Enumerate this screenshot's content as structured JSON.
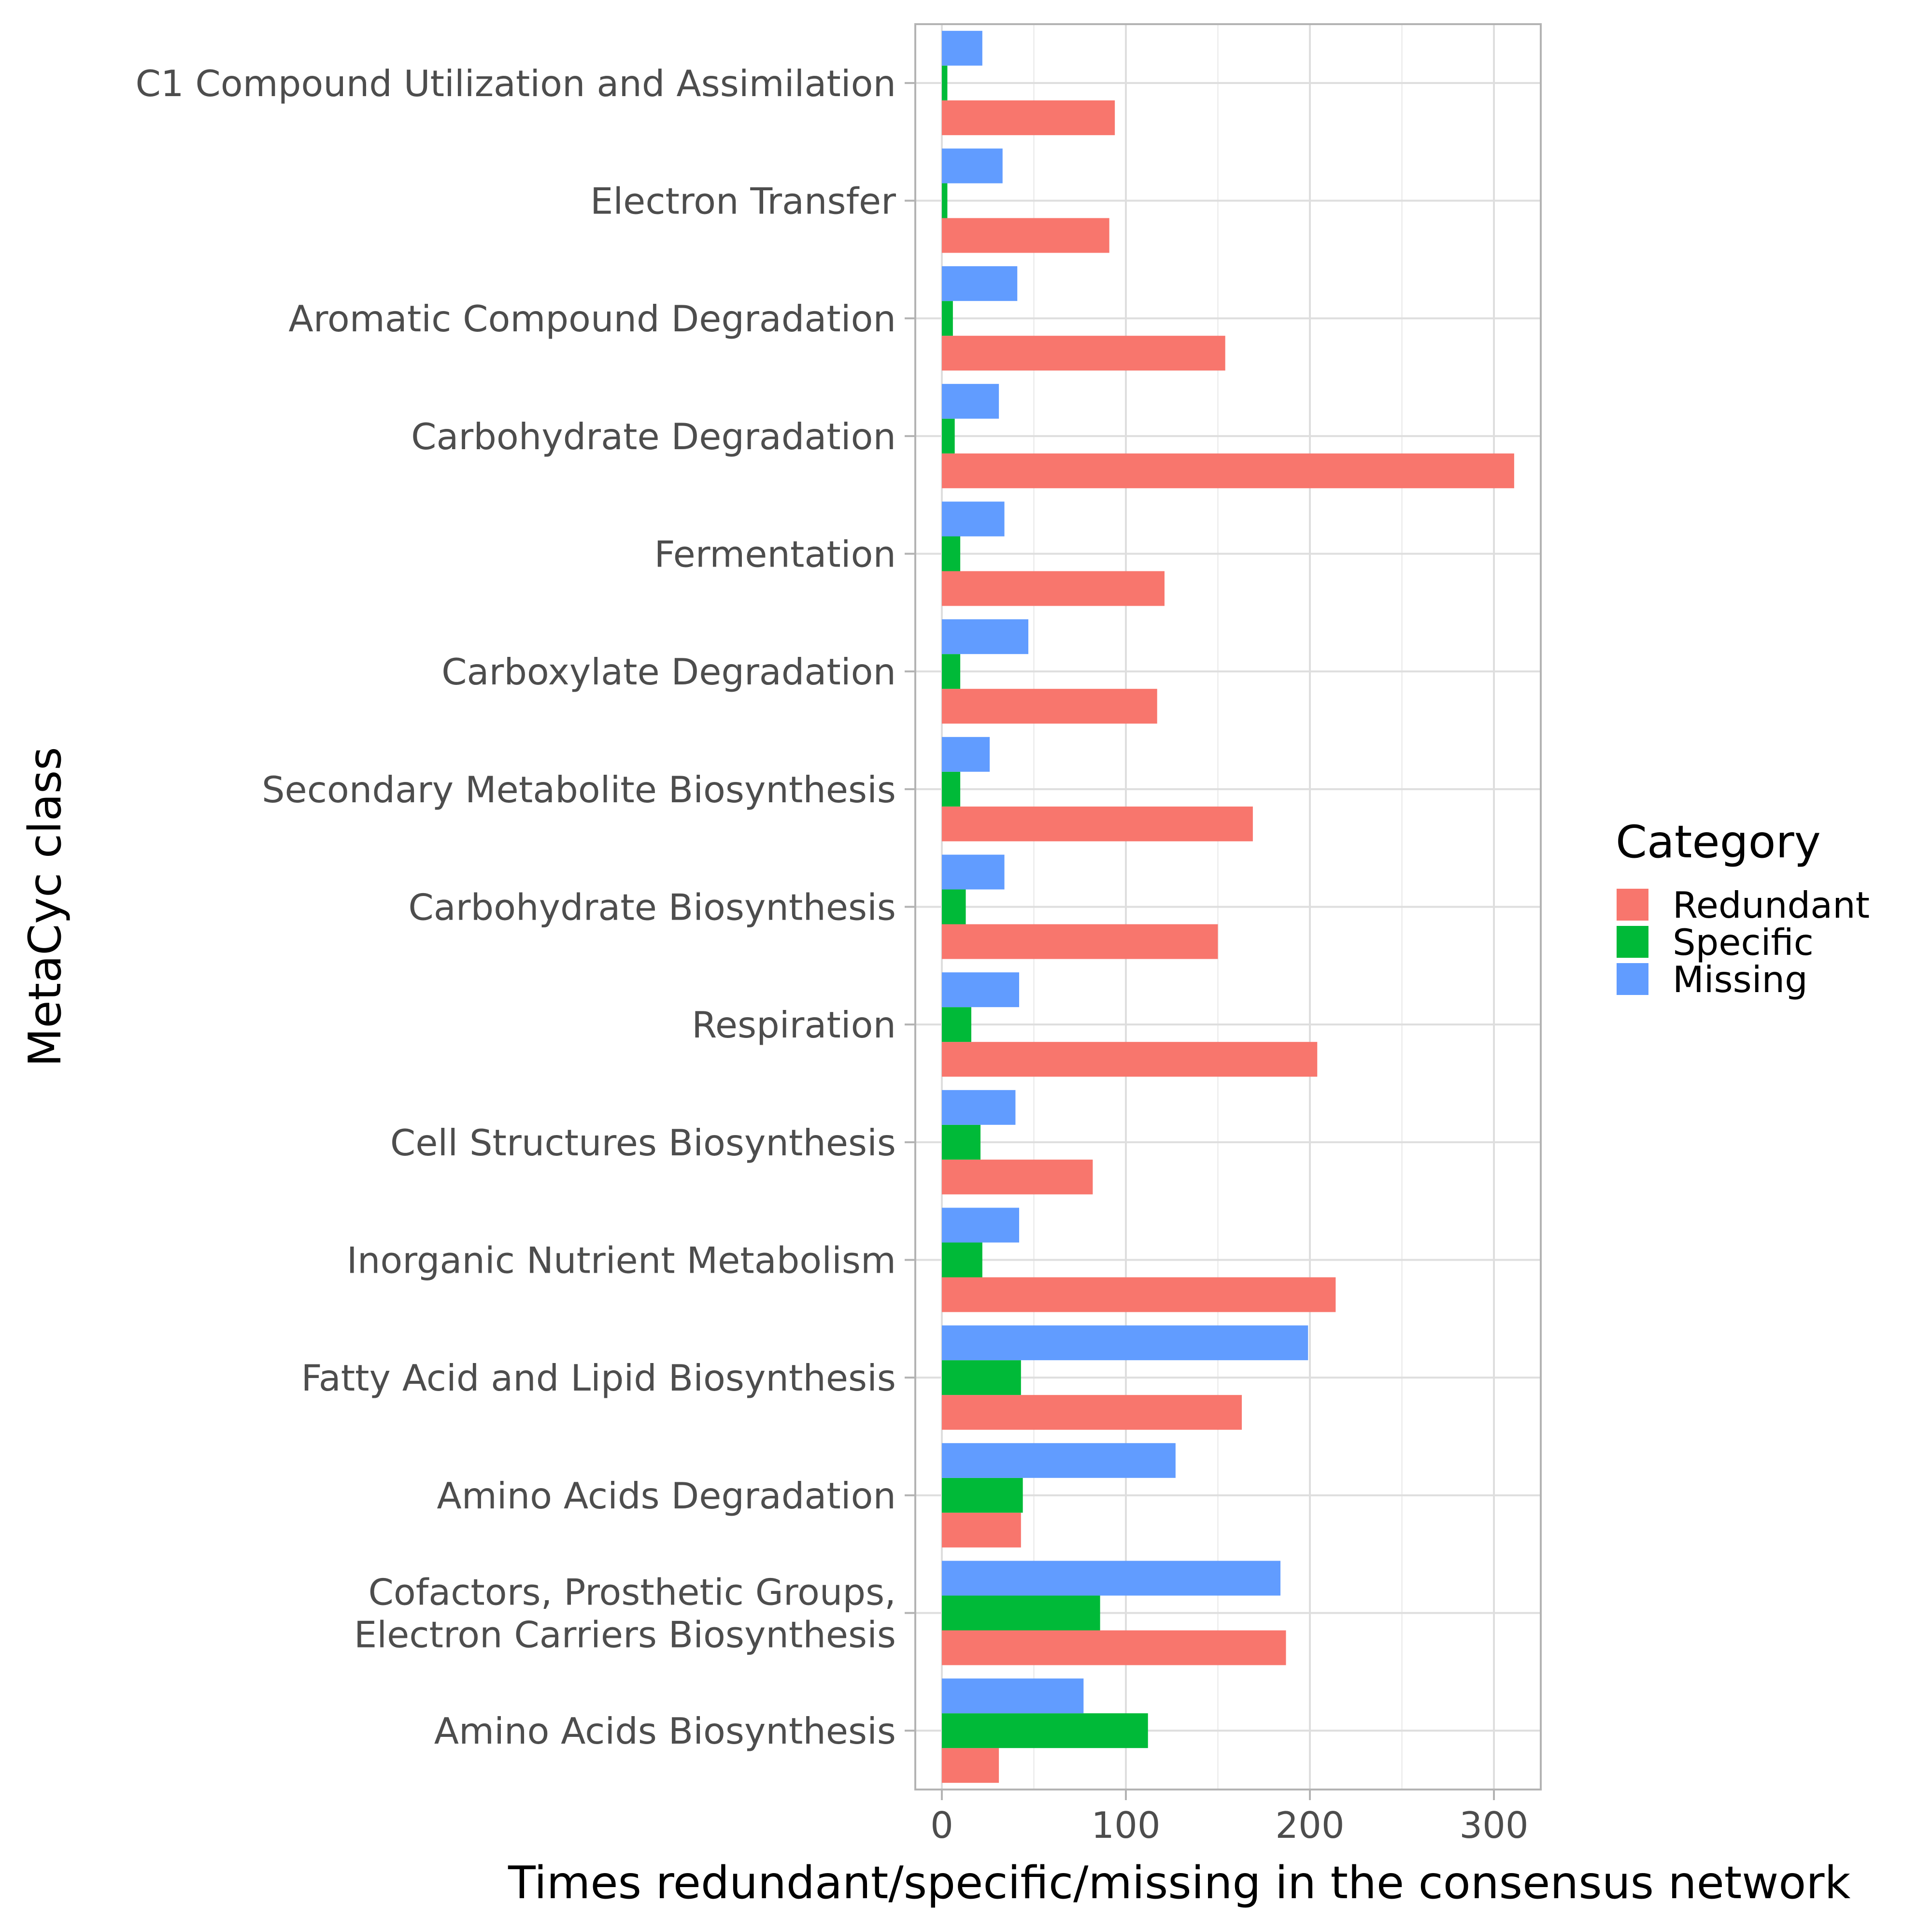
{
  "chart_data": {
    "type": "bar",
    "orientation": "horizontal",
    "xlabel": "Times redundant/specific/missing in the consensus network",
    "ylabel": "MetaCyc class",
    "xlim": [
      -15,
      325
    ],
    "xticks": [
      0,
      100,
      200,
      300
    ],
    "grid": true,
    "legend_title": "Category",
    "legend_position": "right",
    "categories": [
      "C1 Compound Utilization and Assimilation",
      "Electron Transfer",
      "Aromatic Compound Degradation",
      "Carbohydrate Degradation",
      "Fermentation",
      "Carboxylate Degradation",
      "Secondary Metabolite Biosynthesis",
      "Carbohydrate Biosynthesis",
      "Respiration",
      "Cell Structures Biosynthesis",
      "Inorganic Nutrient Metabolism",
      "Fatty Acid and Lipid Biosynthesis",
      "Amino Acids Degradation",
      "Cofactors, Prosthetic Groups,\nElectron Carriers Biosynthesis",
      "Amino Acids Biosynthesis"
    ],
    "series": [
      {
        "name": "Redundant",
        "color": "#F8766D",
        "values": [
          94,
          91,
          154,
          311,
          121,
          117,
          169,
          150,
          204,
          82,
          214,
          163,
          43,
          187,
          31
        ]
      },
      {
        "name": "Specific",
        "color": "#00BA38",
        "values": [
          3,
          3,
          6,
          7,
          10,
          10,
          10,
          13,
          16,
          21,
          22,
          43,
          44,
          86,
          112
        ]
      },
      {
        "name": "Missing",
        "color": "#619CFF",
        "values": [
          22,
          33,
          41,
          31,
          34,
          47,
          26,
          34,
          42,
          40,
          42,
          199,
          127,
          184,
          77
        ]
      }
    ]
  }
}
